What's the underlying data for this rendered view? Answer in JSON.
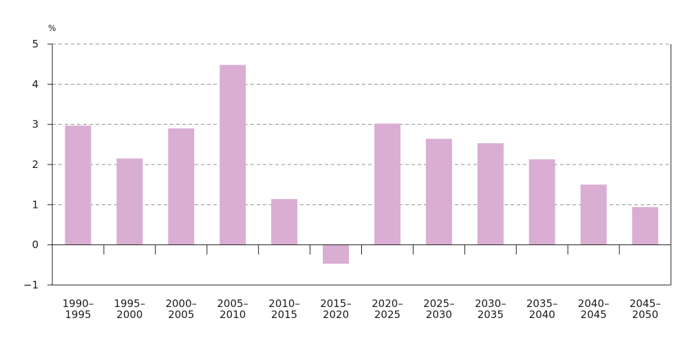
{
  "chart_data": {
    "type": "bar",
    "unit_label": "%",
    "categories": [
      [
        "1990–",
        "1995"
      ],
      [
        "1995–",
        "2000"
      ],
      [
        "2000–",
        "2005"
      ],
      [
        "2005–",
        "2010"
      ],
      [
        "2010–",
        "2015"
      ],
      [
        "2015–",
        "2020"
      ],
      [
        "2020–",
        "2025"
      ],
      [
        "2025–",
        "2030"
      ],
      [
        "2030–",
        "2035"
      ],
      [
        "2035–",
        "2040"
      ],
      [
        "2040–",
        "2045"
      ],
      [
        "2045–",
        "2050"
      ]
    ],
    "values": [
      2.97,
      2.15,
      2.9,
      4.48,
      1.14,
      -0.47,
      3.02,
      2.64,
      2.53,
      2.13,
      1.5,
      0.94
    ],
    "ylim": [
      -1,
      5
    ],
    "yticks": [
      "-1",
      "0",
      "1",
      "2",
      "3",
      "4",
      "5"
    ],
    "grid": true,
    "bar_color": "#d9aed2",
    "grid_color": "#8c8c8c",
    "axis_color": "#1a1a1a"
  }
}
